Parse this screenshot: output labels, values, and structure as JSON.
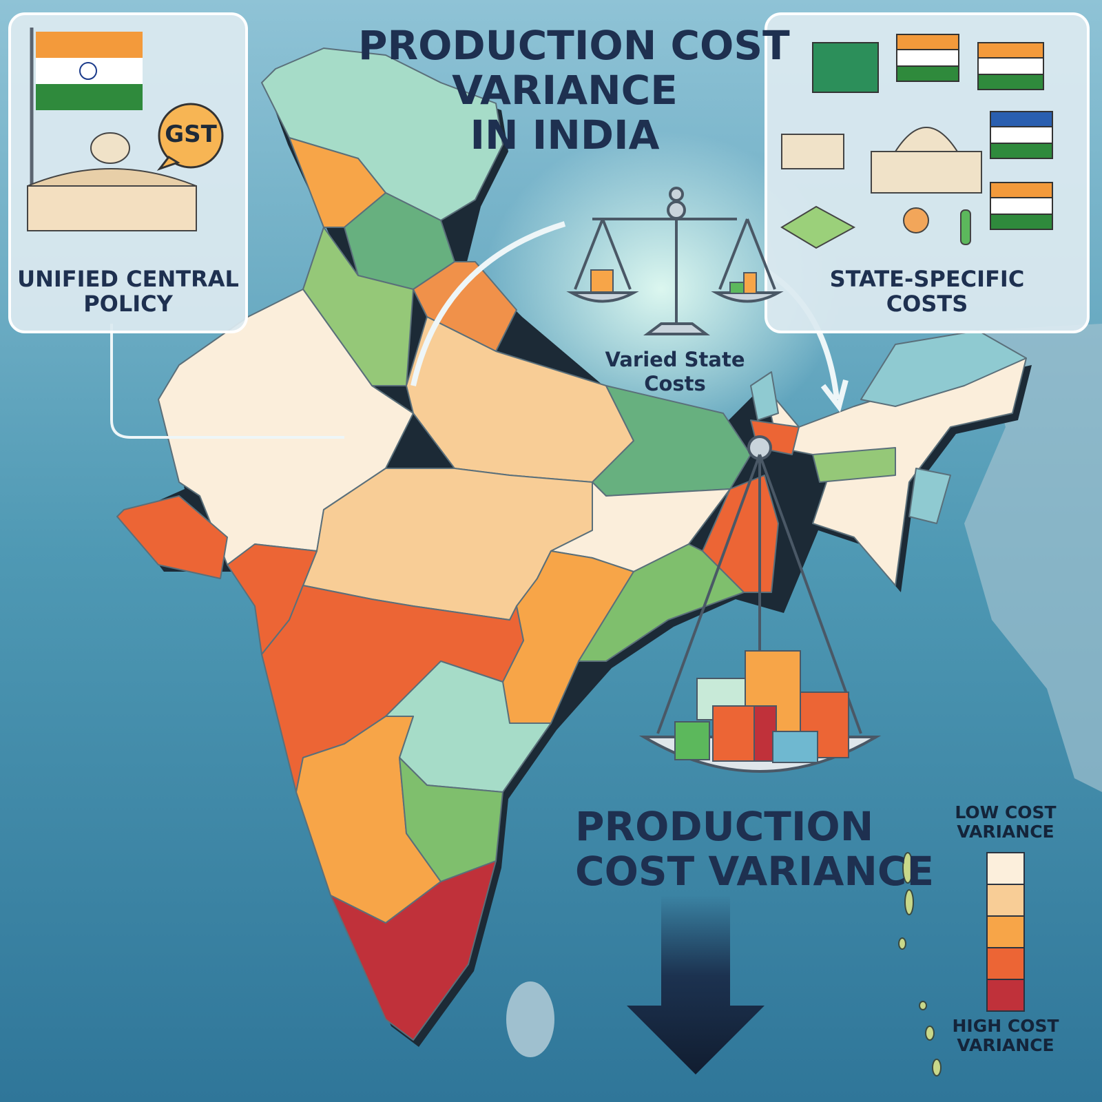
{
  "title": {
    "lines": [
      "PRODUCTION COST",
      "VARIANCE",
      "IN INDIA"
    ]
  },
  "left_panel": {
    "badge": "GST",
    "caption": {
      "lines": [
        "UNIFIED CENTRAL",
        "POLICY"
      ]
    }
  },
  "right_panel": {
    "caption": {
      "lines": [
        "STATE-SPECIFIC",
        "COSTS"
      ]
    }
  },
  "scale_label": {
    "lines": [
      "Varied State",
      "Costs"
    ]
  },
  "bottom_heading": {
    "lines": [
      "PRODUCTION",
      "COST VARIANCE"
    ]
  },
  "legend": {
    "top_label": {
      "lines": [
        "LOW COST",
        "VARIANCE"
      ]
    },
    "bottom_label": {
      "lines": [
        "HIGH COST",
        "VARIANCE"
      ]
    },
    "colors": [
      "#fcefdc",
      "#f8cd96",
      "#f7a548",
      "#ec6535",
      "#c0313a"
    ]
  }
}
